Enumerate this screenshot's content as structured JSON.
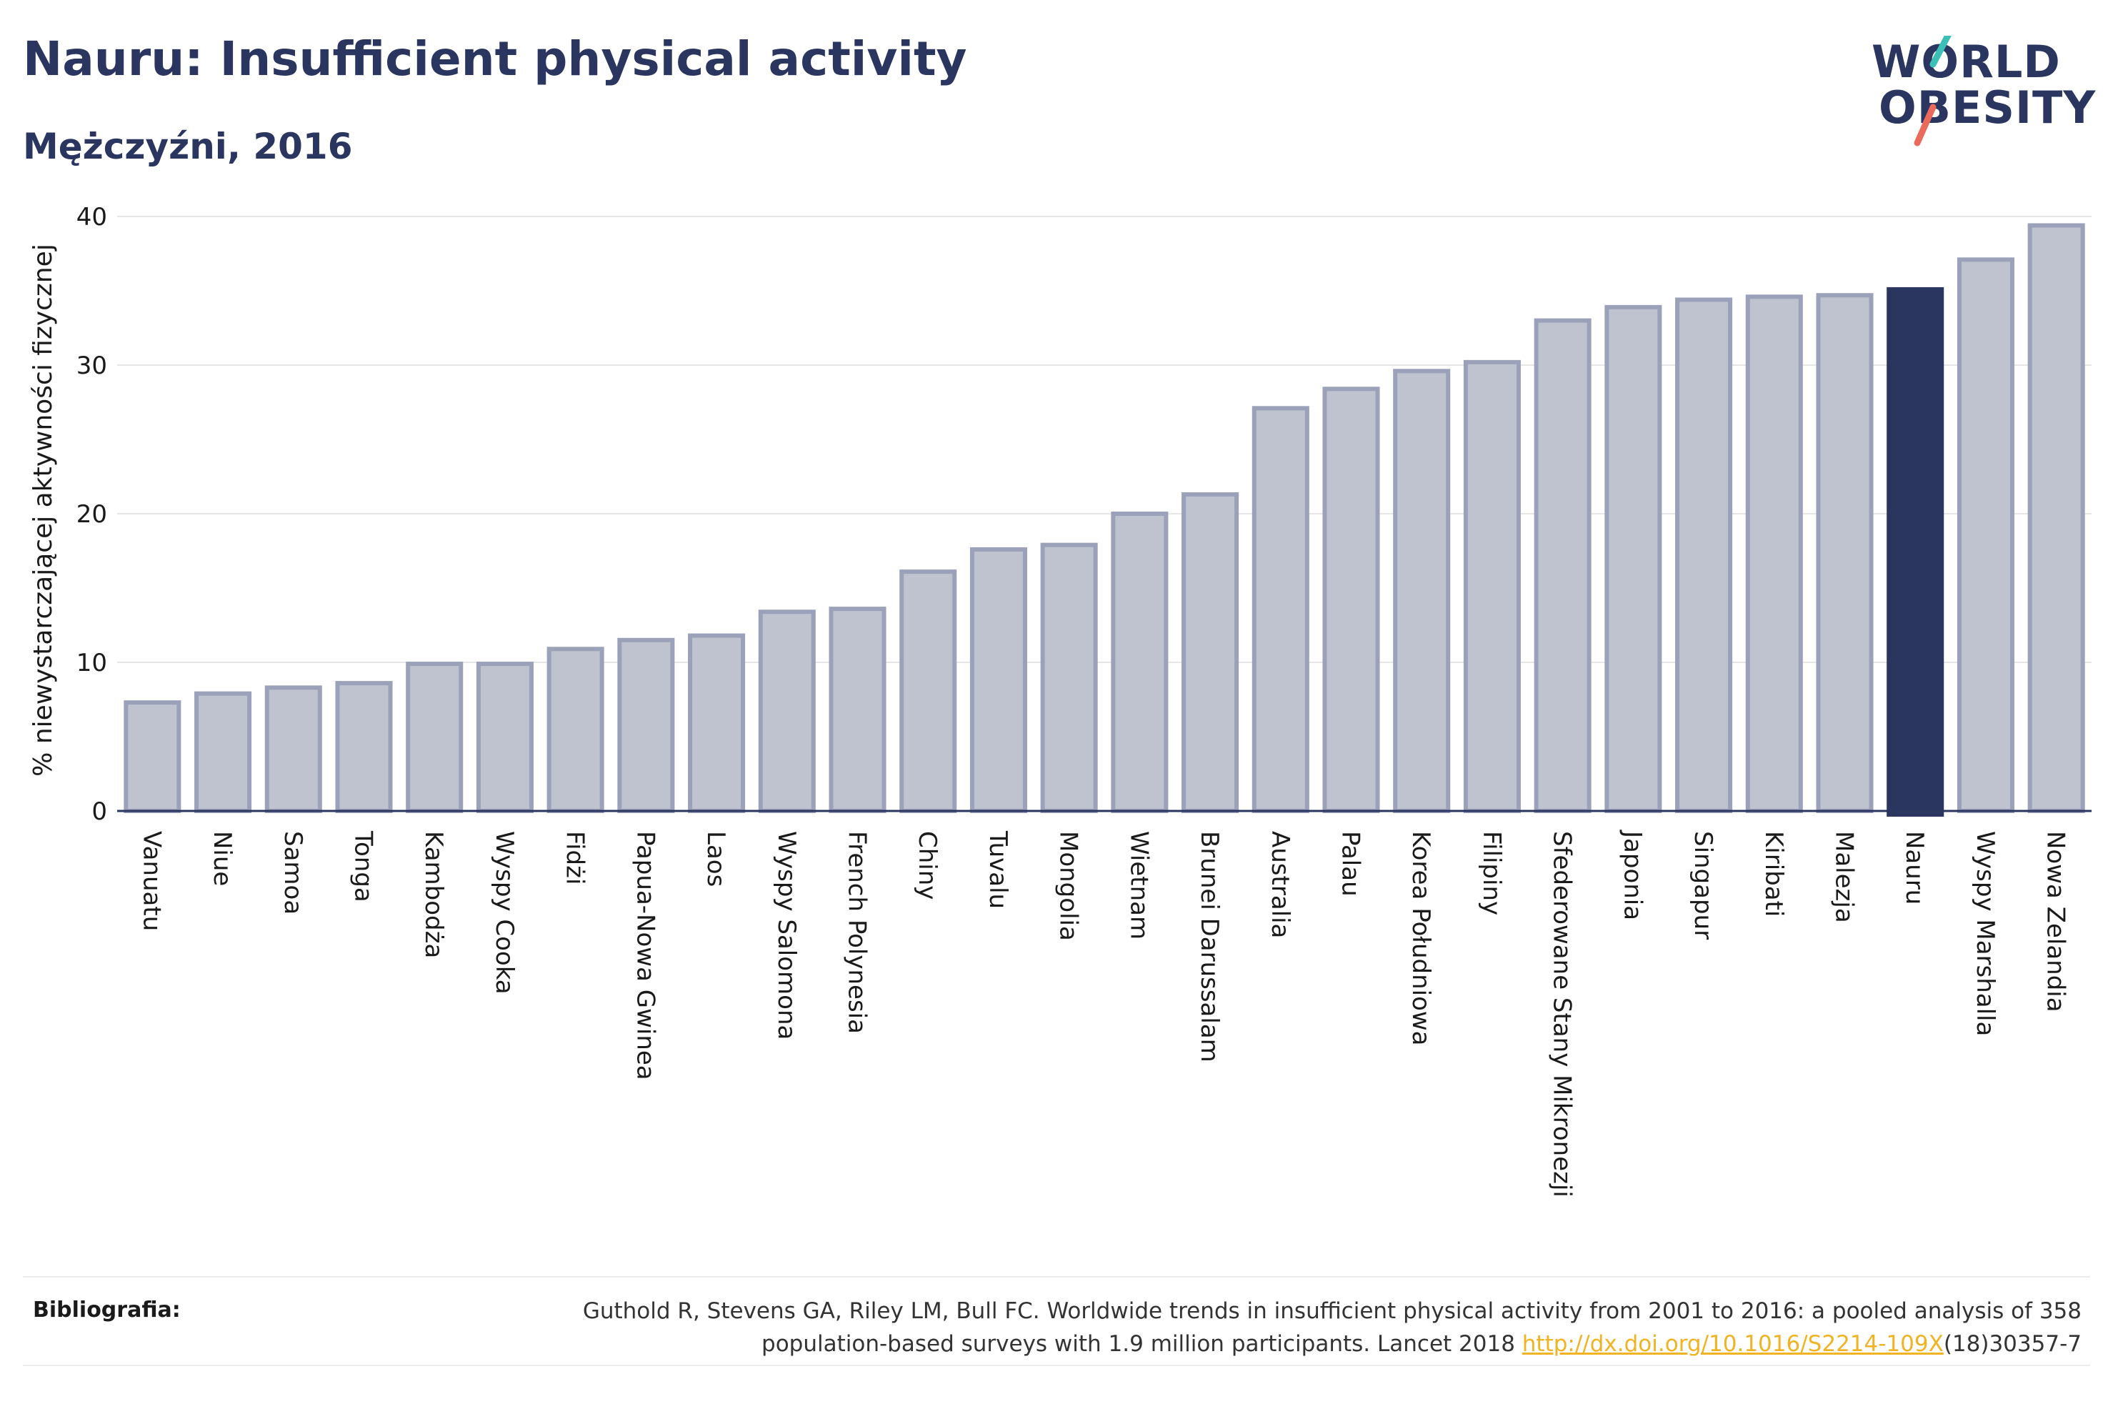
{
  "header": {
    "title": "Nauru: Insufficient physical activity",
    "subtitle": "Mężczyźni, 2016"
  },
  "logo": {
    "line1": "WORLD",
    "line2": "OBESITY",
    "accent_teal": "#3bbfb6",
    "accent_coral": "#ea6a5c"
  },
  "chart_data": {
    "type": "bar",
    "ylabel": "% niewystarczającej aktywności fizycznej",
    "ylim": [
      0,
      40
    ],
    "yticks": [
      0,
      10,
      20,
      30,
      40
    ],
    "grid": true,
    "highlight": "Nauru",
    "colors": {
      "bar": "#bfc3d0",
      "bar_stroke": "#9aa1b8",
      "highlight": "#2a3560",
      "grid": "#e6e6e6",
      "axis": "#2a3560"
    },
    "categories": [
      "Vanuatu",
      "Niue",
      "Samoa",
      "Tonga",
      "Kambodża",
      "Wyspy Cooka",
      "Fidżi",
      "Papua-Nowa Gwinea",
      "Laos",
      "Wyspy Salomona",
      "French Polynesia",
      "Chiny",
      "Tuvalu",
      "Mongolia",
      "Wietnam",
      "Brunei Darussalam",
      "Australia",
      "Palau",
      "Korea Południowa",
      "Filipiny",
      "Sfederowane Stany Mikronezji",
      "Japonia",
      "Singapur",
      "Kiribati",
      "Malezja",
      "Nauru",
      "Wyspy Marshalla",
      "Nowa Zelandia"
    ],
    "values": [
      7.3,
      7.9,
      8.3,
      8.6,
      9.9,
      9.9,
      10.9,
      11.5,
      11.8,
      13.4,
      13.6,
      16.1,
      17.6,
      17.9,
      20.0,
      21.3,
      27.1,
      28.4,
      29.6,
      30.2,
      33.0,
      33.9,
      34.4,
      34.6,
      34.7,
      35.1,
      37.1,
      39.4
    ]
  },
  "footer": {
    "label": "Bibliografia:",
    "line1": "Guthold R, Stevens GA, Riley LM, Bull FC. Worldwide trends in insufficient physical activity from 2001 to 2016: a pooled analysis of 358",
    "line2_prefix": "population-based surveys with 1.9 million participants. Lancet 2018 ",
    "link_text": "http://dx.doi.org/10.1016/S2214-109X",
    "line2_suffix": "(18)30357-7"
  }
}
